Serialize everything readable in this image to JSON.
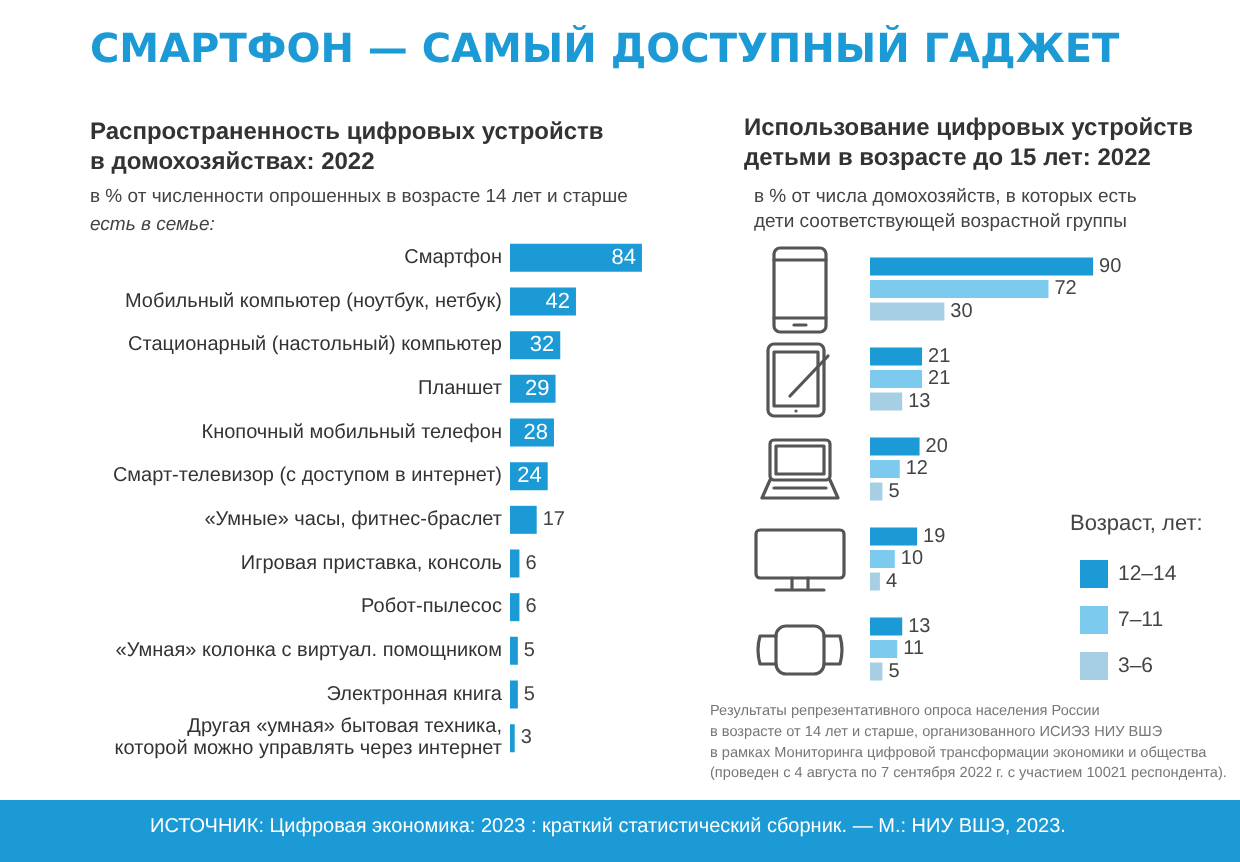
{
  "chart_data": [
    {
      "type": "other",
      "title": "СМАРТФОН — САМЫЙ ДОСТУПНЫЙ ГАДЖЕТ",
      "annotations": [
        "ИСТОЧНИК: Цифровая экономика: 2023 : краткий статистический сборник. — М.: НИУ ВШЭ, 2023."
      ]
    },
    {
      "type": "bar",
      "orientation": "horizontal",
      "title": "Распространенность цифровых устройств\nв домохозяйствах: 2022",
      "subtitle": "в % от численности опрошенных в возрасте 14 лет и старше",
      "annotations": [
        "есть в семье:"
      ],
      "categories": [
        "Смартфон",
        "Мобильный компьютер (ноутбук, нетбук)",
        "Стационарный (настольный) компьютер",
        "Планшет",
        "Кнопочный мобильный телефон",
        "Смарт-телевизор (с доступом в интернет)",
        "«Умные» часы, фитнес-браслет",
        "Игровая приставка, консоль",
        "Робот-пылесос",
        "«Умная» колонка с виртуал. помощником",
        "Электронная книга",
        "Другая «умная» бытовая техника,\nкоторой можно управлять через интернет"
      ],
      "values": [
        84,
        42,
        32,
        29,
        28,
        24,
        17,
        6,
        6,
        5,
        5,
        3
      ],
      "color": "#1b9ad6",
      "data_labels": true,
      "tick_labels": "y"
    },
    {
      "type": "bar",
      "orientation": "horizontal",
      "title": "Использование цифровых устройств\nдетьми в возрасте до 15 лет: 2022",
      "subtitle": "в % от числа домохозяйств, в которых есть\nдети соответствующей возрастной группы",
      "annotations": [
        "Результаты репрезентативного опроса населения России\nв возрасте от 14 лет и старше, организованного ИСИЭЗ НИУ ВШЭ\nв рамках Мониторинга цифровой трансформации экономики и общества\n(проведен с 4 августа по 7 сентября 2022 г. с участием 10021 респондента)."
      ],
      "categories": [
        null,
        null,
        null,
        null,
        null
      ],
      "series": [
        {
          "name": "12–14",
          "color": "#1b9ad6",
          "values": [
            90,
            21,
            20,
            19,
            13
          ]
        },
        {
          "name": "7–11",
          "color": "#7ccbee",
          "values": [
            72,
            21,
            12,
            10,
            11
          ]
        },
        {
          "name": "3–6",
          "color": "#a6cfe3",
          "values": [
            30,
            13,
            5,
            4,
            5
          ]
        }
      ],
      "legend_title": "Возраст, лет:",
      "legend": "right",
      "data_labels": true,
      "tick_labels": false
    }
  ]
}
